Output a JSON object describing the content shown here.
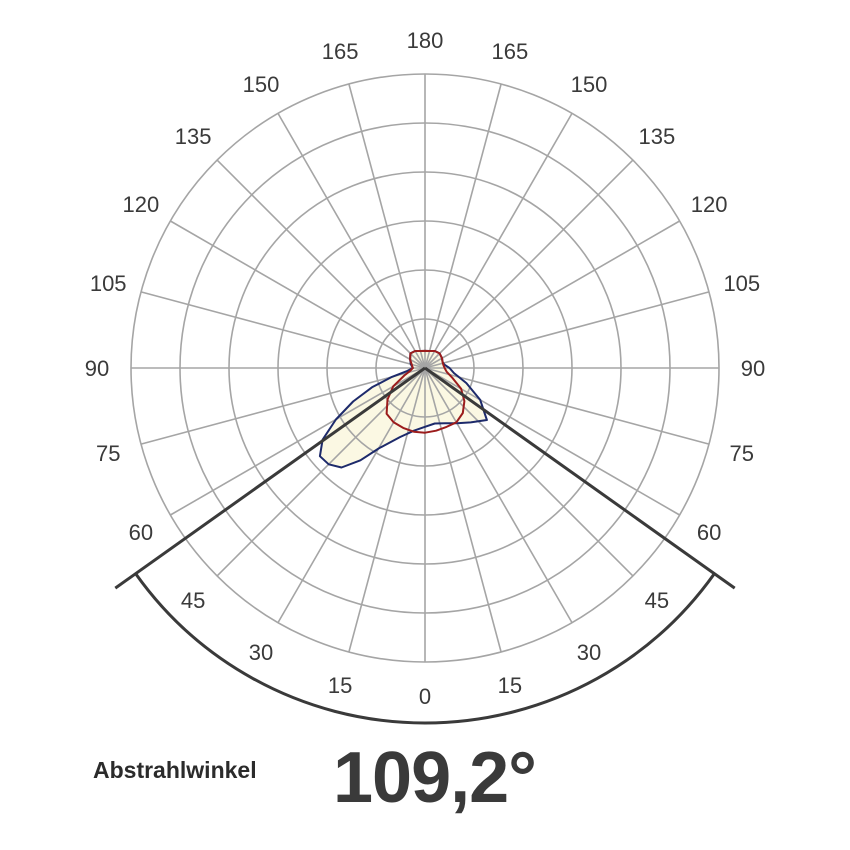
{
  "chart_data": {
    "type": "polar",
    "title": "",
    "angle_ticks": {
      "left": [
        "0",
        "15",
        "30",
        "45",
        "60",
        "75",
        "90",
        "105",
        "120",
        "135",
        "150",
        "165",
        "180"
      ],
      "right": [
        "15",
        "30",
        "45",
        "60",
        "75",
        "90",
        "105",
        "120",
        "135",
        "150",
        "165"
      ]
    },
    "radial_rings": 6,
    "angle_step_deg": 15,
    "beam_angle_deg": 109.2,
    "series": [
      {
        "color": "#1d2a6b",
        "fill": "#fbf8e3",
        "points": [
          [
            -180,
            0.35
          ],
          [
            -165,
            0.36
          ],
          [
            -150,
            0.4
          ],
          [
            -135,
            0.42
          ],
          [
            -120,
            0.35
          ],
          [
            -105,
            0.3
          ],
          [
            -90,
            0.25
          ],
          [
            -80,
            0.38
          ],
          [
            -75,
            0.7
          ],
          [
            -70,
            1.15
          ],
          [
            -65,
            1.62
          ],
          [
            -60,
            2.1
          ],
          [
            -55,
            2.55
          ],
          [
            -50,
            2.8
          ],
          [
            -45,
            2.78
          ],
          [
            -40,
            2.65
          ],
          [
            -35,
            2.3
          ],
          [
            -30,
            1.9
          ],
          [
            -20,
            1.5
          ],
          [
            -10,
            1.3
          ],
          [
            0,
            1.2
          ],
          [
            10,
            1.15
          ],
          [
            20,
            1.2
          ],
          [
            30,
            1.3
          ],
          [
            40,
            1.45
          ],
          [
            50,
            1.65
          ],
          [
            60,
            1.3
          ],
          [
            70,
            0.9
          ],
          [
            80,
            0.6
          ],
          [
            90,
            0.5
          ],
          [
            100,
            0.4
          ],
          [
            110,
            0.38
          ],
          [
            120,
            0.4
          ],
          [
            135,
            0.42
          ],
          [
            150,
            0.4
          ],
          [
            165,
            0.36
          ],
          [
            180,
            0.35
          ]
        ]
      },
      {
        "color": "#9b1c1c",
        "fill": "none",
        "points": [
          [
            -180,
            0.35
          ],
          [
            -165,
            0.36
          ],
          [
            -150,
            0.4
          ],
          [
            -135,
            0.42
          ],
          [
            -120,
            0.35
          ],
          [
            -105,
            0.28
          ],
          [
            -90,
            0.25
          ],
          [
            -80,
            0.3
          ],
          [
            -70,
            0.45
          ],
          [
            -60,
            0.75
          ],
          [
            -50,
            1.0
          ],
          [
            -40,
            1.22
          ],
          [
            -30,
            1.28
          ],
          [
            -20,
            1.3
          ],
          [
            -10,
            1.32
          ],
          [
            0,
            1.32
          ],
          [
            10,
            1.3
          ],
          [
            20,
            1.28
          ],
          [
            30,
            1.28
          ],
          [
            40,
            1.2
          ],
          [
            50,
            1.05
          ],
          [
            60,
            0.85
          ],
          [
            70,
            0.6
          ],
          [
            80,
            0.45
          ],
          [
            90,
            0.4
          ],
          [
            100,
            0.38
          ],
          [
            110,
            0.38
          ],
          [
            120,
            0.4
          ],
          [
            135,
            0.42
          ],
          [
            150,
            0.4
          ],
          [
            165,
            0.36
          ],
          [
            180,
            0.35
          ]
        ]
      }
    ]
  },
  "footer": {
    "label": "Abstrahlwinkel",
    "value": "109,2°"
  }
}
